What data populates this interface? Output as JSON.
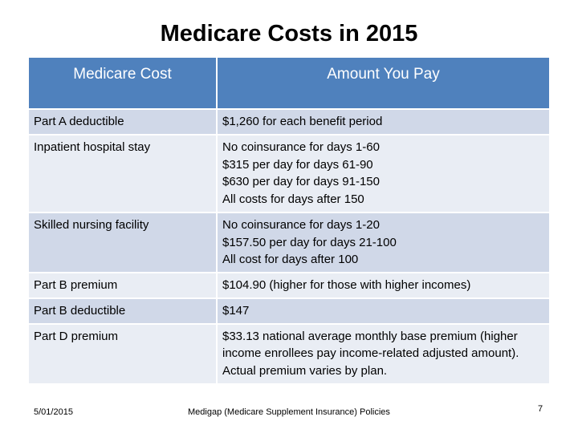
{
  "slide": {
    "title": "Medicare Costs in 2015",
    "headers": [
      "Medicare Cost",
      "Amount You Pay"
    ],
    "rows": [
      {
        "cost": "Part A deductible",
        "amount": [
          "$1,260 for each benefit period"
        ]
      },
      {
        "cost": "Inpatient hospital stay",
        "amount": [
          "No coinsurance for days 1-60",
          "$315 per day for days 61-90",
          "$630 per day for days 91-150",
          "All costs for days after 150"
        ]
      },
      {
        "cost": "Skilled nursing facility",
        "amount": [
          "No coinsurance for days 1-20",
          "$157.50 per day for days 21-100",
          "All cost for days after 100"
        ]
      },
      {
        "cost": "Part B premium",
        "amount": [
          "$104.90 (higher for those with higher incomes)"
        ]
      },
      {
        "cost": "Part B deductible",
        "amount": [
          "$147"
        ]
      },
      {
        "cost": "Part D premium",
        "amount": [
          "$33.13 national average monthly base premium (higher income enrollees pay income-related adjusted amount). Actual premium varies by plan."
        ]
      }
    ],
    "footer": {
      "date": "5/01/2015",
      "center": "Medigap (Medicare Supplement Insurance) Policies",
      "page": "7"
    },
    "colors": {
      "header_bg": "#4f81bd",
      "row_odd": "#d0d8e8",
      "row_even": "#e9edf4"
    }
  }
}
